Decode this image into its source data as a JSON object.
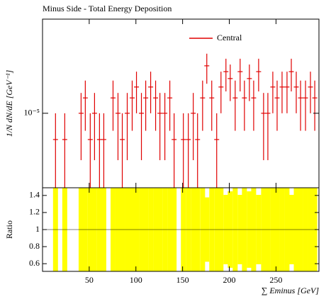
{
  "chart_data": [
    {
      "type": "errorbar",
      "title": "Minus Side - Total Energy Deposition",
      "ylabel": "1/N dN/dE [GeV⁻¹]",
      "log_y": true,
      "xlim": [
        0,
        296
      ],
      "ylim": [
        1.4e-06,
        0.00012
      ],
      "yticks": [
        {
          "value": 1e-05,
          "label": "10⁻⁵"
        }
      ],
      "legend": "upper right",
      "series": [
        {
          "name": "Central",
          "color": "#e00000",
          "x": [
            13.9,
            23.8,
            41.3,
            45.8,
            51.1,
            55.7,
            61.0,
            65.6,
            75.5,
            80.8,
            85.4,
            90.7,
            96.0,
            100.6,
            105.9,
            110.5,
            115.8,
            121.1,
            125.7,
            131.0,
            136.3,
            140.9,
            150.8,
            156.1,
            161.4,
            166.0,
            171.4,
            175.9,
            181.2,
            186.5,
            191.1,
            196.4,
            201.0,
            206.3,
            211.6,
            216.2,
            221.5,
            226.1,
            231.4,
            236.7,
            241.3,
            246.6,
            251.2,
            256.5,
            261.8,
            266.4,
            271.7,
            276.3,
            281.6,
            286.9,
            291.5
          ],
          "values": [
            5e-06,
            5e-06,
            1e-05,
            1.5e-05,
            5e-06,
            1e-05,
            5e-06,
            5e-06,
            1.5e-05,
            1e-05,
            5e-06,
            1e-05,
            1.5e-05,
            2e-05,
            1e-05,
            1.5e-05,
            2e-05,
            1.5e-05,
            1e-05,
            1e-05,
            1.5e-05,
            5e-06,
            5e-06,
            5e-06,
            1e-05,
            5e-06,
            1.5e-05,
            3.5e-05,
            1.5e-05,
            5e-06,
            2e-05,
            3e-05,
            2.5e-05,
            1.5e-05,
            3e-05,
            1.5e-05,
            2.5e-05,
            1.5e-05,
            3e-05,
            1e-05,
            1e-05,
            2e-05,
            1.5e-05,
            2e-05,
            2e-05,
            3e-05,
            2e-05,
            1.5e-05,
            1.5e-05,
            2e-05,
            1.5e-05
          ],
          "errors": [
            5e-06,
            5e-06,
            7.1e-06,
            8.7e-06,
            5e-06,
            7.1e-06,
            5e-06,
            5e-06,
            8.7e-06,
            7.1e-06,
            5e-06,
            7.1e-06,
            8.7e-06,
            1e-05,
            7.1e-06,
            8.7e-06,
            1e-05,
            8.7e-06,
            7.1e-06,
            7.1e-06,
            8.7e-06,
            5e-06,
            5e-06,
            5e-06,
            7.1e-06,
            5e-06,
            8.7e-06,
            1.32e-05,
            8.7e-06,
            5e-06,
            1e-05,
            1.22e-05,
            1.12e-05,
            8.7e-06,
            1.22e-05,
            8.7e-06,
            1.12e-05,
            8.7e-06,
            1.22e-05,
            7.1e-06,
            7.1e-06,
            1e-05,
            8.7e-06,
            1e-05,
            1e-05,
            1.22e-05,
            1e-05,
            8.7e-06,
            8.7e-06,
            1e-05,
            8.7e-06
          ]
        }
      ]
    },
    {
      "type": "ratio",
      "ylabel": "Ratio",
      "xlabel": "∑ Eminus [GeV]",
      "band_color": "#ffff00",
      "ylim": [
        0.51,
        1.49
      ],
      "yticks": [
        0.6,
        0.8,
        1,
        1.2,
        1.4
      ],
      "xticks": [
        50,
        100,
        150,
        200,
        250
      ]
    }
  ]
}
